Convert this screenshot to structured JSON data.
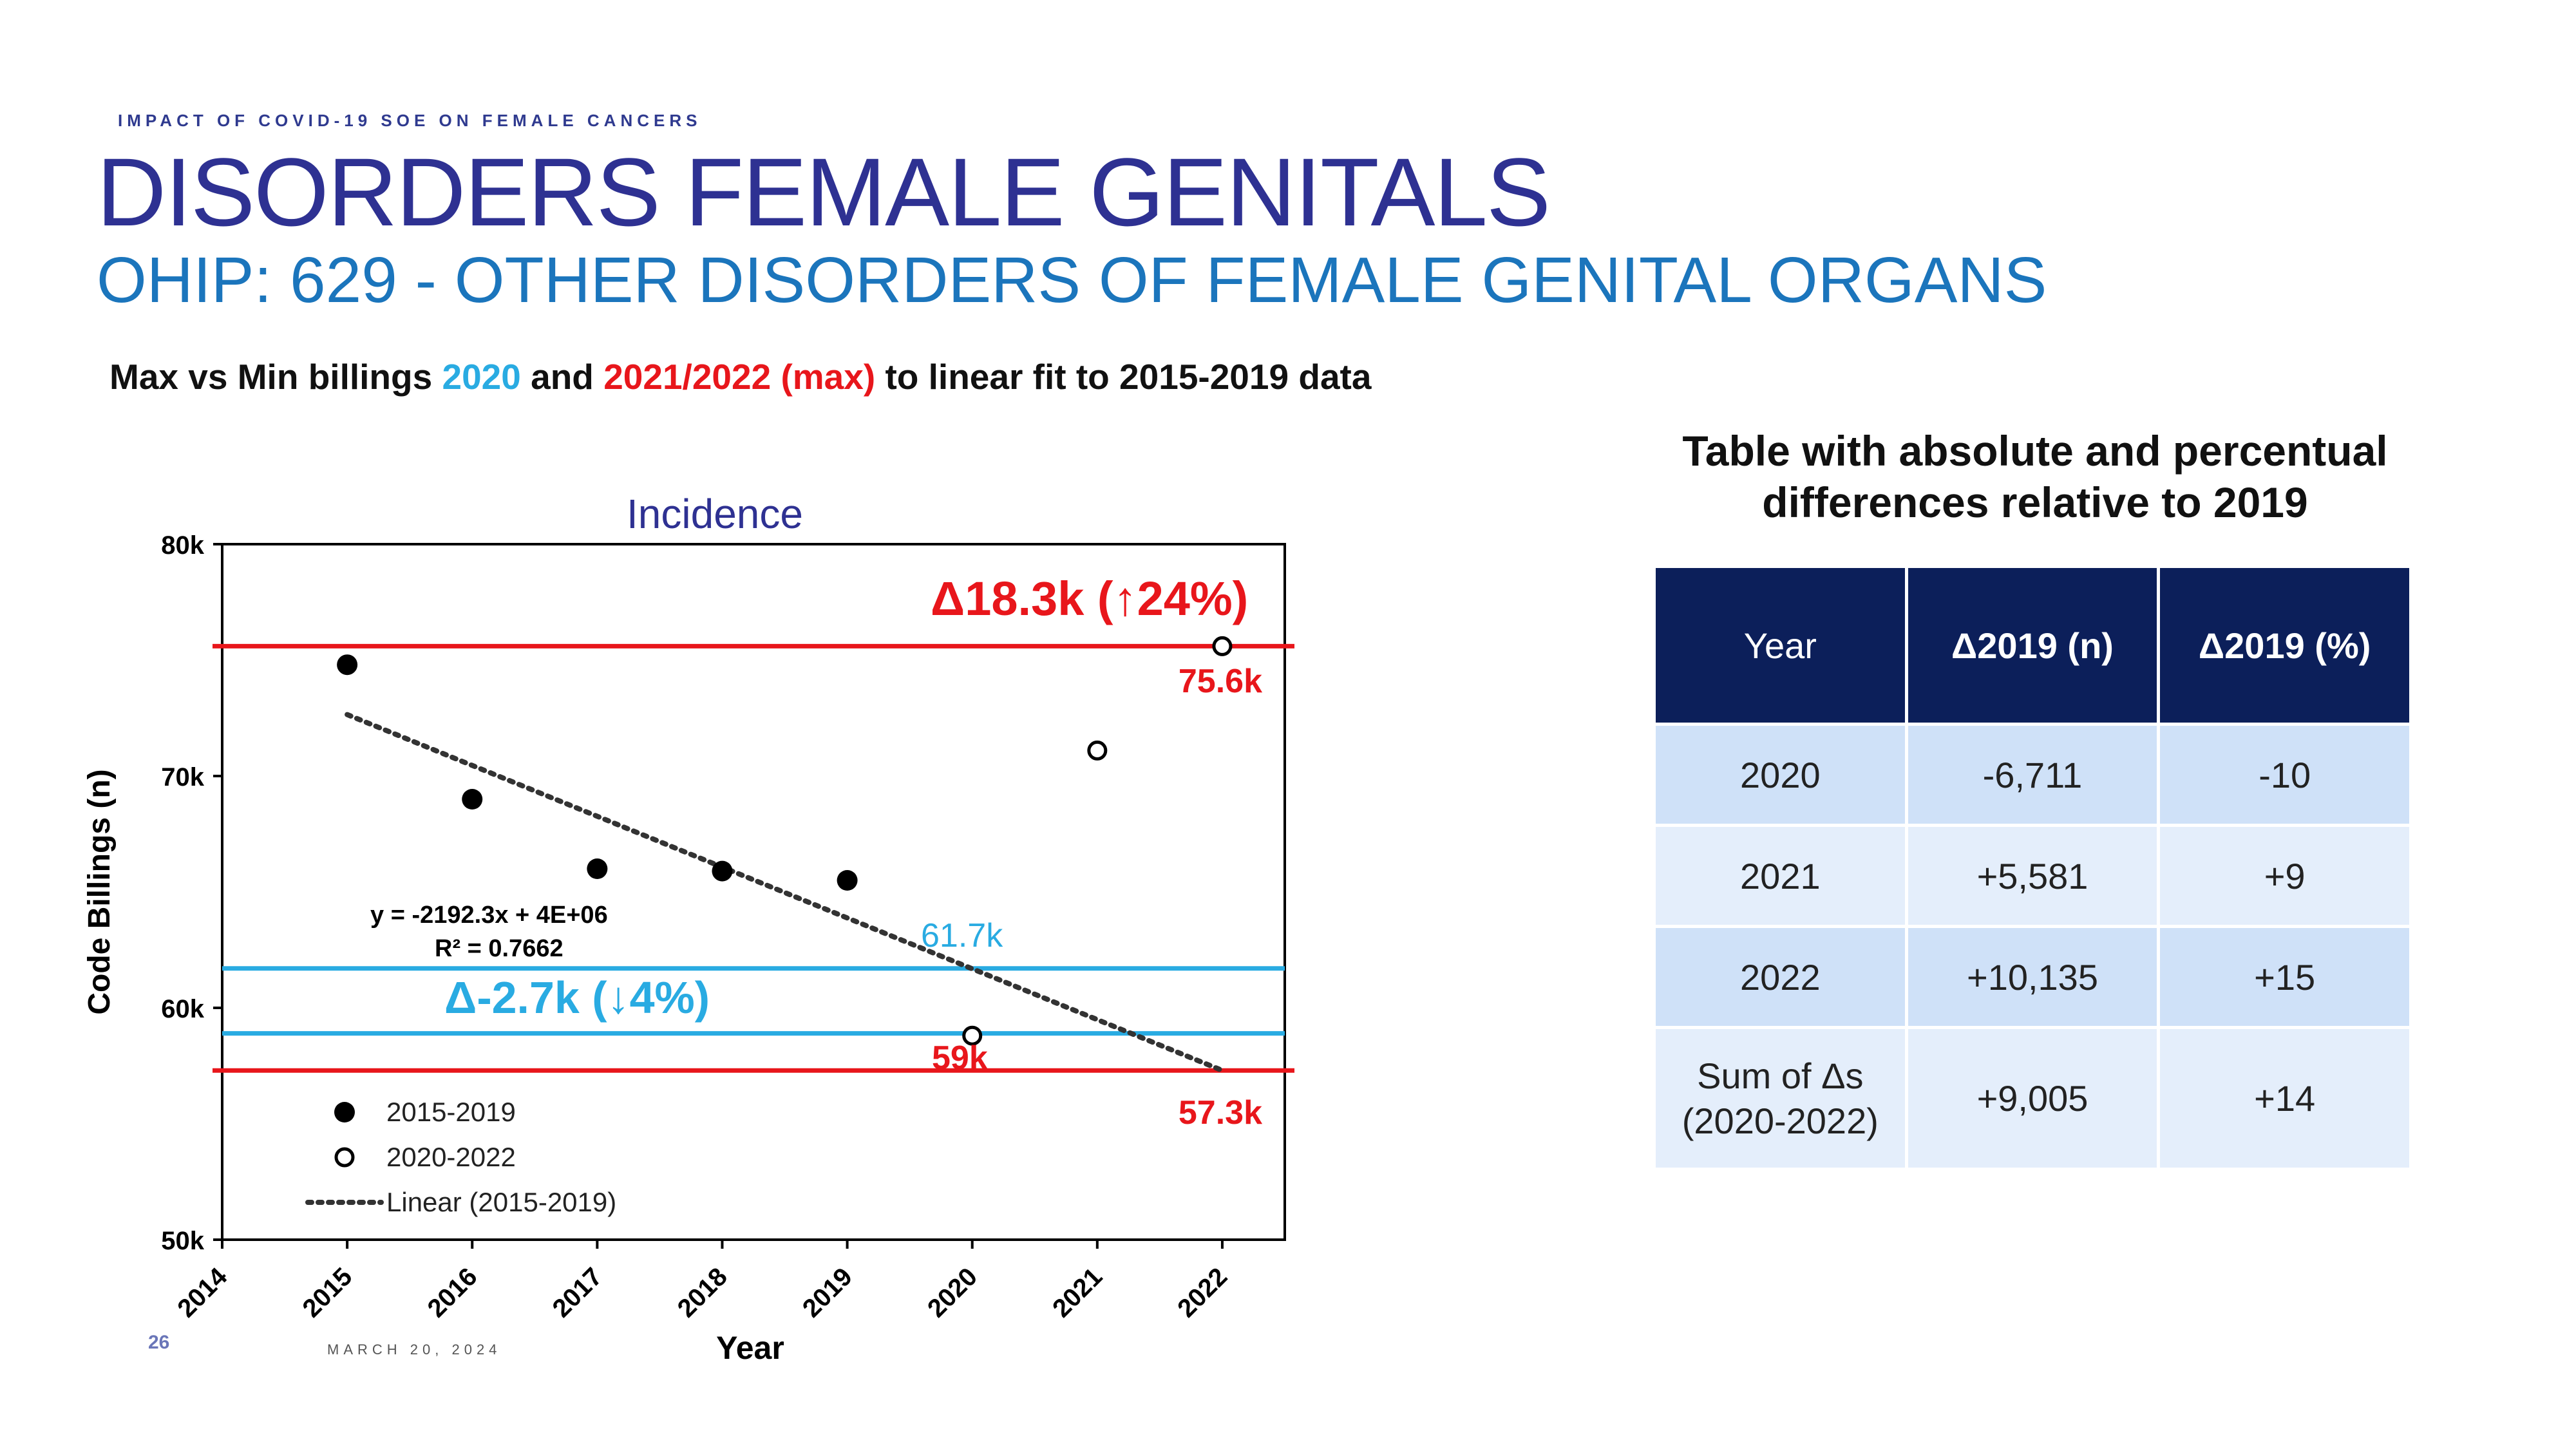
{
  "header": {
    "kicker": "IMPACT OF COVID-19 SOE ON FEMALE CANCERS",
    "title": "DISORDERS FEMALE GENITALS",
    "subtitle": "OHIP: 629 - OTHER DISORDERS OF FEMALE GENITAL ORGANS"
  },
  "caption": {
    "part1": "Max vs Min billings ",
    "part2": "2020",
    "part3": " and ",
    "part4": "2021/2022 (max)",
    "part5": " to linear fit to 2015-2019 data"
  },
  "colors": {
    "title": "#2e3192",
    "subtitle": "#1b75bc",
    "red": "#e8161b",
    "cyan": "#29abe2",
    "table_header": "#0c1f5a"
  },
  "chart_data": {
    "type": "scatter",
    "title": "Incidence",
    "xlabel": "Year",
    "ylabel": "Code Billings (n)",
    "xlim": [
      2014,
      2022.5
    ],
    "ylim": [
      50000,
      80000
    ],
    "x_ticks": [
      "2014",
      "2015",
      "2016",
      "2017",
      "2018",
      "2019",
      "2020",
      "2021",
      "2022"
    ],
    "y_ticks": [
      {
        "value": 50000,
        "label": "50k"
      },
      {
        "value": 60000,
        "label": "60k"
      },
      {
        "value": 70000,
        "label": "70k"
      },
      {
        "value": 80000,
        "label": "80k"
      }
    ],
    "series": [
      {
        "name": "2015-2019",
        "marker": "filled",
        "x": [
          2015,
          2016,
          2017,
          2018,
          2019
        ],
        "y": [
          74800,
          69000,
          66000,
          65900,
          65500
        ]
      },
      {
        "name": "2020-2022",
        "marker": "open",
        "x": [
          2020,
          2021,
          2022
        ],
        "y": [
          58800,
          71100,
          75600
        ]
      }
    ],
    "trendline": {
      "name": "Linear (2015-2019)",
      "x": [
        2015,
        2022
      ],
      "y": [
        72650,
        57300
      ],
      "equation": "y = -2192.3x + 4E+06",
      "r2": "R² = 0.7662"
    },
    "reference_lines": [
      {
        "y": 75600,
        "color": "#e8161b"
      },
      {
        "y": 57300,
        "color": "#e8161b"
      },
      {
        "y": 61700,
        "color": "#29abe2"
      },
      {
        "y": 58900,
        "color": "#29abe2"
      }
    ],
    "annotations": {
      "max_delta": "Δ18.3k (↑24%)",
      "min_delta": "Δ-2.7k (↓4%)",
      "label_75_6k": "75.6k",
      "label_57_3k": "57.3k",
      "label_61_7k": "61.7k",
      "label_59k": "59k"
    },
    "legend_position": "bottom-left",
    "grid": false
  },
  "table": {
    "title": "Table with absolute and percentual differences relative to 2019",
    "headers": [
      "Year",
      "Δ2019 (n)",
      "Δ2019 (%)"
    ],
    "rows": [
      [
        "2020",
        "-6,711",
        "-10"
      ],
      [
        "2021",
        "+5,581",
        "+9"
      ],
      [
        "2022",
        "+10,135",
        "+15"
      ]
    ],
    "sum_row": {
      "label_line1": "Sum of Δs",
      "label_line2": "(2020-2022)",
      "n": "+9,005",
      "pct": "+14"
    }
  },
  "footer": {
    "page_number": "26",
    "date": "MARCH 20, 2024"
  }
}
